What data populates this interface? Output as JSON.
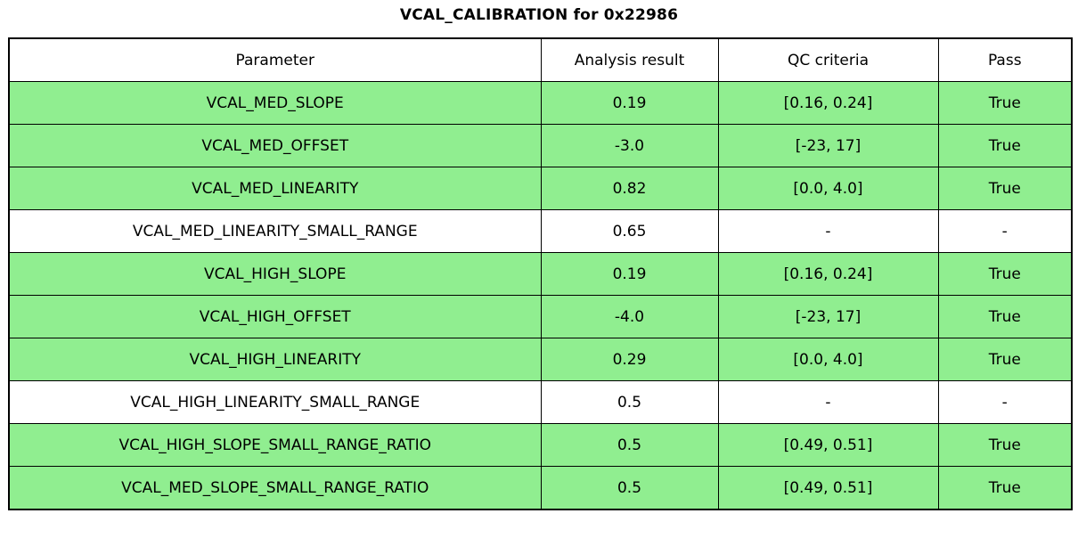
{
  "title": "VCAL_CALIBRATION for 0x22986",
  "colors": {
    "pass_row_bg": "#90EE90",
    "neutral_row_bg": "#FFFFFF",
    "border": "#000000",
    "text": "#000000"
  },
  "chart_data": {
    "type": "table",
    "title": "VCAL_CALIBRATION for 0x22986",
    "columns": [
      "Parameter",
      "Analysis result",
      "QC criteria",
      "Pass"
    ],
    "rows": [
      {
        "cells": [
          "VCAL_MED_SLOPE",
          "0.19",
          "[0.16, 0.24]",
          "True"
        ],
        "pass_highlight": true
      },
      {
        "cells": [
          "VCAL_MED_OFFSET",
          "-3.0",
          "[-23, 17]",
          "True"
        ],
        "pass_highlight": true
      },
      {
        "cells": [
          "VCAL_MED_LINEARITY",
          "0.82",
          "[0.0, 4.0]",
          "True"
        ],
        "pass_highlight": true
      },
      {
        "cells": [
          "VCAL_MED_LINEARITY_SMALL_RANGE",
          "0.65",
          "-",
          "-"
        ],
        "pass_highlight": false
      },
      {
        "cells": [
          "VCAL_HIGH_SLOPE",
          "0.19",
          "[0.16, 0.24]",
          "True"
        ],
        "pass_highlight": true
      },
      {
        "cells": [
          "VCAL_HIGH_OFFSET",
          "-4.0",
          "[-23, 17]",
          "True"
        ],
        "pass_highlight": true
      },
      {
        "cells": [
          "VCAL_HIGH_LINEARITY",
          "0.29",
          "[0.0, 4.0]",
          "True"
        ],
        "pass_highlight": true
      },
      {
        "cells": [
          "VCAL_HIGH_LINEARITY_SMALL_RANGE",
          "0.5",
          "-",
          "-"
        ],
        "pass_highlight": false
      },
      {
        "cells": [
          "VCAL_HIGH_SLOPE_SMALL_RANGE_RATIO",
          "0.5",
          "[0.49, 0.51]",
          "True"
        ],
        "pass_highlight": true
      },
      {
        "cells": [
          "VCAL_MED_SLOPE_SMALL_RANGE_RATIO",
          "0.5",
          "[0.49, 0.51]",
          "True"
        ],
        "pass_highlight": true
      }
    ],
    "layout": {
      "legend": "none",
      "grid": "all-borders",
      "header_bg": "#FFFFFF",
      "highlight_meaning": "green row = QC passed, white row = informational only"
    }
  }
}
